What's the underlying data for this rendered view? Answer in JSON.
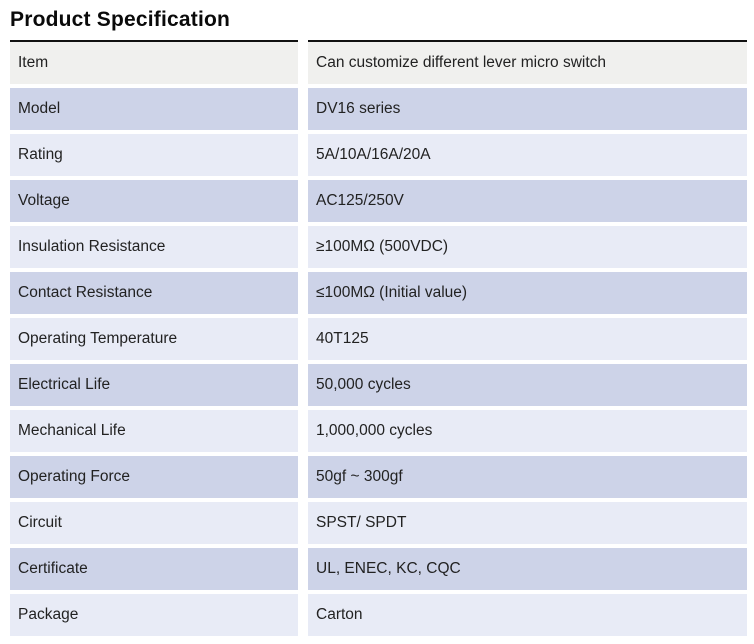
{
  "page_title": "Product Specification",
  "colors": {
    "row-header": "#f0f0ee",
    "row-dark": "#cdd3e8",
    "row-light": "#e8ebf6",
    "border": "#111111",
    "text": "#222222"
  },
  "table": {
    "rows": [
      {
        "label": "Item",
        "value": "Can customize different lever micro switch"
      },
      {
        "label": "Model",
        "value": "DV16 series"
      },
      {
        "label": "Rating",
        "value": "5A/10A/16A/20A"
      },
      {
        "label": "Voltage",
        "value": "AC125/250V"
      },
      {
        "label": "Insulation Resistance",
        "value": "≥100MΩ (500VDC)"
      },
      {
        "label": "Contact Resistance",
        "value": "≤100MΩ (Initial value)"
      },
      {
        "label": "Operating Temperature",
        "value": "40T125"
      },
      {
        "label": "Electrical Life",
        "value": "50,000 cycles"
      },
      {
        "label": "Mechanical Life",
        "value": "1,000,000 cycles"
      },
      {
        "label": "Operating Force",
        "value": "50gf ~ 300gf"
      },
      {
        "label": "Circuit",
        "value": "SPST/ SPDT"
      },
      {
        "label": "Certificate",
        "value": "UL, ENEC, KC, CQC"
      },
      {
        "label": "Package",
        "value": "Carton"
      }
    ]
  }
}
